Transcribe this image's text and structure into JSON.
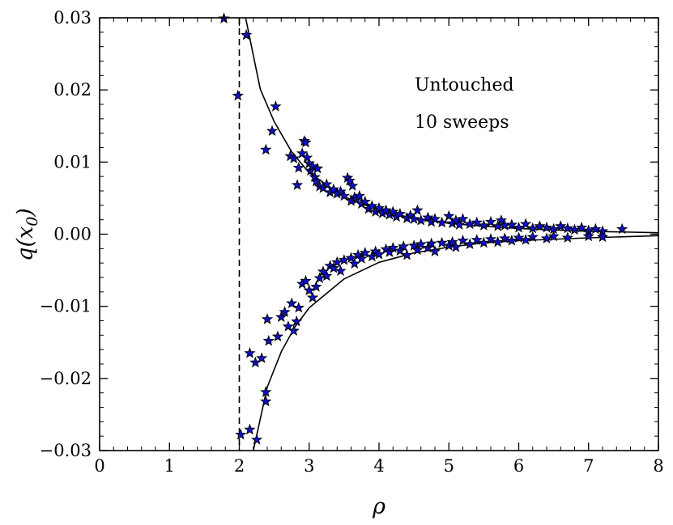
{
  "chart_data": {
    "type": "scatter",
    "title": "",
    "xlabel": "ρ",
    "ylabel_parts": {
      "base": "q(x",
      "subscript": "0",
      "close": ")"
    },
    "xlim": [
      0,
      8
    ],
    "ylim": [
      -0.03,
      0.03
    ],
    "xticks": [
      0,
      1,
      2,
      3,
      4,
      5,
      6,
      7,
      8
    ],
    "xtick_labels": [
      "0",
      "1",
      "2",
      "3",
      "4",
      "5",
      "6",
      "7",
      "8"
    ],
    "yticks": [
      -0.03,
      -0.02,
      -0.01,
      0.0,
      0.01,
      0.02,
      0.03
    ],
    "ytick_labels": [
      "−0.03",
      "−0.02",
      "−0.01",
      "0.00",
      "0.01",
      "0.02",
      "0.03"
    ],
    "grid": false,
    "annotations": [
      "Untouched",
      "10 sweeps"
    ],
    "vertical_line": {
      "x": 2,
      "style": "dashed"
    },
    "fit_curves": [
      {
        "y": [
          [
            2.09,
            0.03
          ],
          [
            2.3,
            0.0201
          ],
          [
            2.5,
            0.0156
          ],
          [
            2.75,
            0.0114
          ],
          [
            3.0,
            0.0085
          ],
          [
            3.5,
            0.0052
          ],
          [
            4.0,
            0.0033
          ],
          [
            4.5,
            0.0022
          ],
          [
            5.0,
            0.0015
          ],
          [
            5.5,
            0.0011
          ],
          [
            6.0,
            0.0008
          ],
          [
            7.0,
            0.0004
          ],
          [
            8.0,
            0.0002
          ]
        ]
      },
      {
        "y": [
          [
            2.2,
            -0.03
          ],
          [
            2.4,
            -0.0212
          ],
          [
            2.6,
            -0.0163
          ],
          [
            2.8,
            -0.0128
          ],
          [
            3.0,
            -0.0102
          ],
          [
            3.5,
            -0.0062
          ],
          [
            4.0,
            -0.0039
          ],
          [
            4.5,
            -0.0026
          ],
          [
            5.0,
            -0.0018
          ],
          [
            5.5,
            -0.0012
          ],
          [
            6.0,
            -0.0009
          ],
          [
            7.0,
            -0.0005
          ],
          [
            8.0,
            -0.0002
          ]
        ]
      }
    ],
    "series": [
      {
        "marker": "star",
        "color": "#1010c8",
        "points": [
          [
            1.78,
            0.0299
          ],
          [
            1.98,
            0.0192
          ],
          [
            2.1,
            0.0276
          ],
          [
            2.38,
            0.0117
          ],
          [
            2.47,
            0.0143
          ],
          [
            2.52,
            0.0177
          ],
          [
            2.73,
            0.0108
          ],
          [
            2.78,
            0.0105
          ],
          [
            2.83,
            0.0068
          ],
          [
            2.85,
            0.0092
          ],
          [
            2.9,
            0.0112
          ],
          [
            2.93,
            0.0129
          ],
          [
            2.95,
            0.0127
          ],
          [
            2.97,
            0.0106
          ],
          [
            3.0,
            0.0098
          ],
          [
            3.02,
            0.0088
          ],
          [
            3.05,
            0.0094
          ],
          [
            3.08,
            0.0079
          ],
          [
            3.1,
            0.0073
          ],
          [
            3.12,
            0.0091
          ],
          [
            3.15,
            0.0066
          ],
          [
            3.2,
            0.0064
          ],
          [
            3.25,
            0.0069
          ],
          [
            3.3,
            0.0058
          ],
          [
            3.35,
            0.0062
          ],
          [
            3.4,
            0.0056
          ],
          [
            3.45,
            0.0059
          ],
          [
            3.5,
            0.0053
          ],
          [
            3.55,
            0.0078
          ],
          [
            3.58,
            0.0074
          ],
          [
            3.6,
            0.0046
          ],
          [
            3.62,
            0.0067
          ],
          [
            3.65,
            0.0051
          ],
          [
            3.68,
            0.0048
          ],
          [
            3.72,
            0.0053
          ],
          [
            3.75,
            0.0042
          ],
          [
            3.8,
            0.0045
          ],
          [
            3.85,
            0.0035
          ],
          [
            3.9,
            0.0039
          ],
          [
            3.95,
            0.0031
          ],
          [
            4.0,
            0.0036
          ],
          [
            4.05,
            0.0029
          ],
          [
            4.1,
            0.0033
          ],
          [
            4.15,
            0.0027
          ],
          [
            4.2,
            0.0031
          ],
          [
            4.25,
            0.0024
          ],
          [
            4.3,
            0.0028
          ],
          [
            4.4,
            0.0022
          ],
          [
            4.45,
            0.0026
          ],
          [
            4.5,
            0.0021
          ],
          [
            4.55,
            0.0033
          ],
          [
            4.6,
            0.0019
          ],
          [
            4.7,
            0.0023
          ],
          [
            4.75,
            0.0017
          ],
          [
            4.8,
            0.0021
          ],
          [
            4.9,
            0.0016
          ],
          [
            5.0,
            0.0025
          ],
          [
            5.05,
            0.0015
          ],
          [
            5.1,
            0.0019
          ],
          [
            5.15,
            0.0013
          ],
          [
            5.2,
            0.0021
          ],
          [
            5.3,
            0.0014
          ],
          [
            5.4,
            0.0016
          ],
          [
            5.5,
            0.0012
          ],
          [
            5.6,
            0.0017
          ],
          [
            5.7,
            0.0011
          ],
          [
            5.75,
            0.0019
          ],
          [
            5.8,
            0.0012
          ],
          [
            5.9,
            0.0013
          ],
          [
            6.0,
            0.0009
          ],
          [
            6.1,
            0.0014
          ],
          [
            6.2,
            0.0008
          ],
          [
            6.3,
            0.0011
          ],
          [
            6.4,
            0.0009
          ],
          [
            6.5,
            0.0007
          ],
          [
            6.6,
            0.0011
          ],
          [
            6.7,
            0.0008
          ],
          [
            6.8,
            0.0006
          ],
          [
            6.9,
            0.0009
          ],
          [
            7.0,
            0.0005
          ],
          [
            7.1,
            0.0007
          ],
          [
            7.2,
            0.0004
          ],
          [
            7.48,
            0.0007
          ],
          [
            2.02,
            -0.0278
          ],
          [
            2.15,
            -0.0271
          ],
          [
            2.25,
            -0.0285
          ],
          [
            2.15,
            -0.0165
          ],
          [
            2.23,
            -0.0178
          ],
          [
            2.32,
            -0.0172
          ],
          [
            2.38,
            -0.0232
          ],
          [
            2.38,
            -0.0219
          ],
          [
            2.42,
            -0.0148
          ],
          [
            2.4,
            -0.0118
          ],
          [
            2.55,
            -0.0142
          ],
          [
            2.6,
            -0.0115
          ],
          [
            2.65,
            -0.0108
          ],
          [
            2.7,
            -0.0128
          ],
          [
            2.75,
            -0.0096
          ],
          [
            2.78,
            -0.0134
          ],
          [
            2.82,
            -0.0121
          ],
          [
            2.85,
            -0.0102
          ],
          [
            2.9,
            -0.0069
          ],
          [
            2.95,
            -0.0065
          ],
          [
            3.0,
            -0.0078
          ],
          [
            3.05,
            -0.0088
          ],
          [
            3.1,
            -0.0073
          ],
          [
            3.15,
            -0.0061
          ],
          [
            3.2,
            -0.0052
          ],
          [
            3.25,
            -0.0058
          ],
          [
            3.3,
            -0.0044
          ],
          [
            3.35,
            -0.0047
          ],
          [
            3.4,
            -0.0039
          ],
          [
            3.45,
            -0.0051
          ],
          [
            3.5,
            -0.0036
          ],
          [
            3.6,
            -0.0033
          ],
          [
            3.65,
            -0.0041
          ],
          [
            3.7,
            -0.0029
          ],
          [
            3.75,
            -0.0034
          ],
          [
            3.8,
            -0.0026
          ],
          [
            3.9,
            -0.0031
          ],
          [
            3.95,
            -0.0024
          ],
          [
            4.0,
            -0.0028
          ],
          [
            4.1,
            -0.0021
          ],
          [
            4.15,
            -0.0025
          ],
          [
            4.2,
            -0.0019
          ],
          [
            4.3,
            -0.0023
          ],
          [
            4.35,
            -0.0017
          ],
          [
            4.4,
            -0.0029
          ],
          [
            4.5,
            -0.0016
          ],
          [
            4.55,
            -0.0022
          ],
          [
            4.6,
            -0.0014
          ],
          [
            4.7,
            -0.0019
          ],
          [
            4.75,
            -0.0013
          ],
          [
            4.8,
            -0.0024
          ],
          [
            4.9,
            -0.0012
          ],
          [
            5.0,
            -0.0016
          ],
          [
            5.05,
            -0.0011
          ],
          [
            5.1,
            -0.0018
          ],
          [
            5.2,
            -0.0009
          ],
          [
            5.3,
            -0.0014
          ],
          [
            5.4,
            -0.0008
          ],
          [
            5.5,
            -0.0012
          ],
          [
            5.6,
            -0.0007
          ],
          [
            5.7,
            -0.0011
          ],
          [
            5.8,
            -0.0006
          ],
          [
            5.9,
            -0.0009
          ],
          [
            6.0,
            -0.0005
          ],
          [
            6.1,
            -0.0008
          ],
          [
            6.2,
            -0.0004
          ],
          [
            6.4,
            -0.0006
          ],
          [
            6.5,
            -0.0003
          ],
          [
            6.7,
            -0.0005
          ],
          [
            7.0,
            -0.0003
          ],
          [
            7.2,
            -0.0004
          ]
        ]
      }
    ]
  }
}
